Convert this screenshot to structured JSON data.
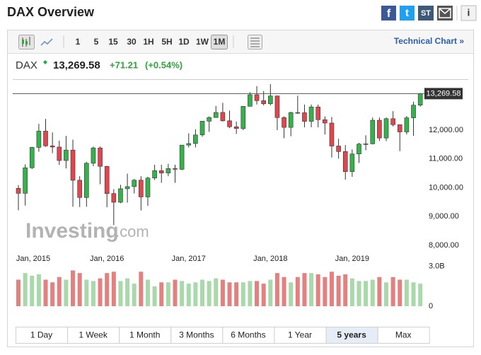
{
  "header": {
    "title": "DAX Overview",
    "share": [
      "f",
      "t",
      "ST",
      "i"
    ]
  },
  "toolbar": {
    "intervals": [
      "1",
      "5",
      "15",
      "30",
      "1H",
      "5H",
      "1D",
      "1W",
      "1M"
    ],
    "selected": 8,
    "technical_chart": "Technical Chart »"
  },
  "quote": {
    "symbol": "DAX",
    "price": "13,269.58",
    "change": "+71.21",
    "change_pct": "(+0.54%)"
  },
  "watermark": [
    "Investing",
    ".com"
  ],
  "ranges": {
    "items": [
      "1 Day",
      "1 Week",
      "1 Month",
      "3 Months",
      "6 Months",
      "1 Year",
      "5 years",
      "Max"
    ],
    "selected": 6
  },
  "chart_data": {
    "type": "candlestick",
    "x": [
      "2014-12",
      "2015-01",
      "2015-02",
      "2015-03",
      "2015-04",
      "2015-05",
      "2015-06",
      "2015-07",
      "2015-08",
      "2015-09",
      "2015-10",
      "2015-11",
      "2015-12",
      "2016-01",
      "2016-02",
      "2016-03",
      "2016-04",
      "2016-05",
      "2016-06",
      "2016-07",
      "2016-08",
      "2016-09",
      "2016-10",
      "2016-11",
      "2016-12",
      "2017-01",
      "2017-02",
      "2017-03",
      "2017-04",
      "2017-05",
      "2017-06",
      "2017-07",
      "2017-08",
      "2017-09",
      "2017-10",
      "2017-11",
      "2017-12",
      "2018-01",
      "2018-02",
      "2018-03",
      "2018-04",
      "2018-05",
      "2018-06",
      "2018-07",
      "2018-08",
      "2018-09",
      "2018-10",
      "2018-11",
      "2018-12",
      "2019-01",
      "2019-02",
      "2019-03",
      "2019-04",
      "2019-05",
      "2019-06",
      "2019-07",
      "2019-08",
      "2019-09",
      "2019-10",
      "2019-11"
    ],
    "open": [
      9980,
      9806,
      10694,
      11401,
      11966,
      11454,
      11413,
      10945,
      11309,
      10259,
      9660,
      10850,
      11382,
      10743,
      9798,
      9495,
      9965,
      10039,
      10263,
      9680,
      10337,
      10592,
      10511,
      10665,
      10640,
      11481,
      11535,
      11834,
      12313,
      12438,
      12615,
      12325,
      12118,
      12056,
      12829,
      13230,
      13024,
      12918,
      13189,
      12436,
      12097,
      12612,
      12605,
      12306,
      12806,
      12364,
      12247,
      11448,
      11257,
      10559,
      11173,
      11516,
      11526,
      12344,
      11727,
      12399,
      12189,
      11939,
      12428,
      12868
    ],
    "high": [
      10090,
      10810,
      11420,
      12220,
      12390,
      11920,
      11635,
      11800,
      11670,
      10400,
      10900,
      11430,
      11430,
      10760,
      9950,
      10100,
      10490,
      10300,
      10400,
      10380,
      10800,
      10800,
      10830,
      10800,
      11480,
      11890,
      12030,
      12320,
      12480,
      12840,
      12950,
      12680,
      12300,
      12830,
      13320,
      13530,
      13360,
      13600,
      13200,
      12480,
      12640,
      13200,
      12890,
      12890,
      12890,
      12480,
      12460,
      11700,
      11480,
      11330,
      11560,
      11820,
      12440,
      12440,
      12440,
      12660,
      12190,
      12490,
      12990,
      13290
    ],
    "low": [
      9220,
      9380,
      10650,
      11250,
      11420,
      11200,
      10790,
      10670,
      9340,
      9330,
      9340,
      10750,
      10120,
      9320,
      8700,
      9460,
      9480,
      9800,
      9210,
      9370,
      10270,
      10170,
      10400,
      10170,
      10610,
      11400,
      11400,
      11770,
      11940,
      12430,
      12300,
      12070,
      11870,
      12000,
      12820,
      12890,
      12860,
      12860,
      12000,
      11720,
      11790,
      12570,
      12100,
      12100,
      12100,
      11850,
      11050,
      11010,
      10280,
      10380,
      10860,
      11300,
      11510,
      11620,
      11620,
      12130,
      11270,
      11850,
      11800,
      12820
    ],
    "close": [
      9806,
      10694,
      11401,
      11966,
      11454,
      11413,
      10945,
      11309,
      10259,
      9660,
      10850,
      11382,
      10743,
      9798,
      9495,
      9965,
      10039,
      10263,
      9680,
      10337,
      10592,
      10511,
      10665,
      10640,
      11481,
      11535,
      11834,
      12313,
      12438,
      12615,
      12325,
      12118,
      12056,
      12829,
      13230,
      13024,
      12918,
      13189,
      12436,
      12097,
      12612,
      12605,
      12306,
      12806,
      12364,
      12247,
      11448,
      11257,
      10559,
      11173,
      11516,
      11526,
      12344,
      11727,
      12399,
      12189,
      11939,
      12428,
      12868,
      13269.58
    ],
    "volume": [
      2.0,
      2.5,
      2.3,
      2.4,
      2.0,
      1.8,
      2.2,
      2.0,
      2.7,
      2.5,
      2.0,
      1.9,
      2.1,
      2.5,
      2.6,
      1.9,
      2.1,
      1.7,
      2.6,
      2.0,
      1.5,
      1.8,
      1.8,
      2.0,
      1.9,
      1.7,
      1.8,
      2.0,
      1.9,
      2.1,
      2.0,
      1.8,
      1.8,
      1.8,
      1.9,
      1.9,
      1.7,
      2.0,
      2.5,
      2.2,
      1.8,
      2.2,
      2.5,
      2.5,
      2.4,
      2.2,
      2.6,
      2.3,
      2.4,
      2.1,
      1.9,
      1.9,
      2.0,
      2.2,
      1.8,
      2.2,
      2.0,
      2.0,
      1.8,
      1.7
    ],
    "up_color": "#35b34a",
    "down_color": "#e0464e",
    "up_volume_color": "#a9d8ab",
    "down_volume_color": "#e38080",
    "ylim": [
      7800,
      13770
    ],
    "yticks": [
      {
        "value": 8000,
        "label": "8,000.00"
      },
      {
        "value": 9000,
        "label": "9,000.00"
      },
      {
        "value": 10000,
        "label": "10,000.00"
      },
      {
        "value": 11000,
        "label": "11,000.00"
      },
      {
        "value": 12000,
        "label": "12,000.00"
      }
    ],
    "xticks": [
      {
        "value": "2015-01",
        "label": "Jan, 2015"
      },
      {
        "value": "2016-01",
        "label": "Jan, 2016"
      },
      {
        "value": "2017-01",
        "label": "Jan, 2017"
      },
      {
        "value": "2018-01",
        "label": "Jan, 2018"
      },
      {
        "value": "2019-01",
        "label": "Jan, 2019"
      }
    ],
    "last": {
      "value": 13269.58,
      "label": "13,269.58"
    },
    "y2lim": [
      0,
      3.2
    ],
    "y2ticks": [
      0,
      {
        "value": 3,
        "label": "3.0B"
      }
    ]
  }
}
